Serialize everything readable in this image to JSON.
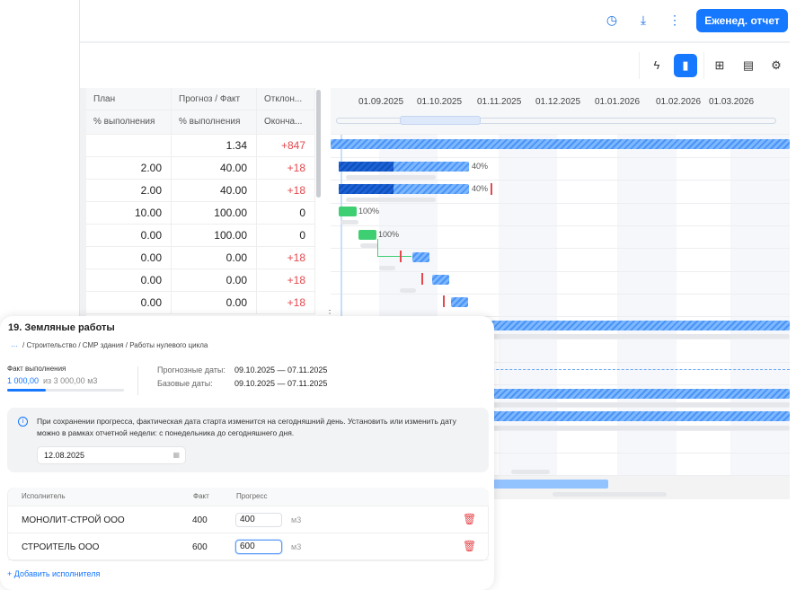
{
  "header": {
    "icons": [
      "clock-icon",
      "download-icon",
      "more-vertical-icon"
    ],
    "report_button": "Еженед. отчет"
  },
  "toolbar": {
    "icons": [
      "lightning-icon",
      "chart-bar-icon",
      "grid-icon",
      "table-icon",
      "gear-icon"
    ],
    "active": "chart-bar-icon"
  },
  "table": {
    "columns": [
      {
        "top": "План",
        "sub": "% выполнения"
      },
      {
        "top": "Прогноз / Факт",
        "sub": "% выполнения"
      },
      {
        "top": "Отклон...",
        "sub": "Оконча..."
      }
    ],
    "rows": [
      [
        "",
        "1.34",
        "+847"
      ],
      [
        "2.00",
        "40.00",
        "+18"
      ],
      [
        "2.00",
        "40.00",
        "+18"
      ],
      [
        "10.00",
        "100.00",
        "0"
      ],
      [
        "0.00",
        "100.00",
        "0"
      ],
      [
        "0.00",
        "0.00",
        "+18"
      ],
      [
        "0.00",
        "0.00",
        "+18"
      ],
      [
        "0.00",
        "0.00",
        "+18"
      ]
    ]
  },
  "gantt": {
    "months": [
      "01.09.2025",
      "01.10.2025",
      "01.11.2025",
      "01.12.2025",
      "01.01.2026",
      "01.02.2026",
      "01.03.2026"
    ],
    "labels": [
      "40%",
      "40%",
      "100%",
      "100%"
    ],
    "colors": {
      "planned": "#4a94f5",
      "actual": "#1d63d8",
      "done": "#3ecf72",
      "deviation": "#e5484d"
    }
  },
  "panel": {
    "title": "19. Земляные работы",
    "breadcrumb_more": "···",
    "breadcrumb": "/ Строительство / СМР здания / Работы нулевого цикла",
    "fact_label": "Факт выполнения",
    "fact_value": "1 000,00",
    "fact_total": "из 3 000,00  м3",
    "fact_progress": 0.333,
    "forecast_label": "Прогнозные даты:",
    "forecast_dates": "09.10.2025 — 07.11.2025",
    "base_label": "Базовые даты:",
    "base_dates": "09.10.2025 — 07.11.2025",
    "info_text": "При сохранении прогресса, фактическая дата старта изменится на сегодняшний день. Установить или изменить дату можно в рамках отчетной недели: с понедельника до сегодняшнего дня.",
    "date_value": "12.08.2025",
    "exec_headers": {
      "name": "Исполнитель",
      "fact": "Факт",
      "progress": "Прогресс"
    },
    "executors": [
      {
        "name": "МОНОЛИТ-СТРОЙ ООО",
        "fact": "400",
        "progress": "400",
        "unit": "м3"
      },
      {
        "name": "СТРОИТЕЛЬ ООО",
        "fact": "600",
        "progress": "600",
        "unit": "м3"
      }
    ],
    "add_executor": "+ Добавить исполнителя"
  }
}
